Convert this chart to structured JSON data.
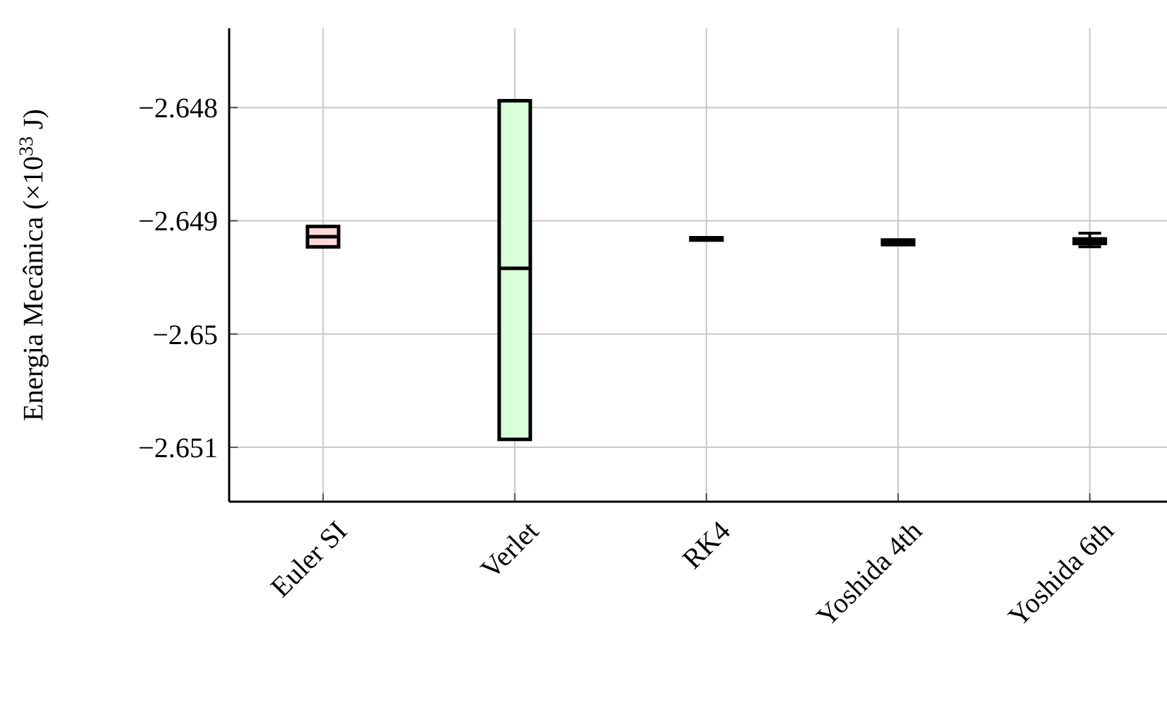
{
  "chart_data": {
    "type": "box",
    "ylabel": "Energia Mecânica (×10$^{33}$ J)",
    "categories": [
      "Euler SI",
      "Verlet",
      "RK4",
      "Yoshida 4th",
      "Yoshida 6th"
    ],
    "boxes": [
      {
        "low": -2.64923,
        "q1": -2.64923,
        "median": -2.64914,
        "q3": -2.64905,
        "high": -2.64905
      },
      {
        "low": -2.65093,
        "q1": -2.65093,
        "median": -2.64942,
        "q3": -2.64794,
        "high": -2.64794
      },
      {
        "low": -2.64917,
        "q1": -2.64917,
        "median": -2.64916,
        "q3": -2.64915,
        "high": -2.64915
      },
      {
        "low": -2.64921,
        "q1": -2.64921,
        "median": -2.64919,
        "q3": -2.64917,
        "high": -2.64917
      },
      {
        "low": -2.64923,
        "q1": -2.6492,
        "median": -2.64918,
        "q3": -2.64916,
        "high": -2.64911
      }
    ],
    "colors": [
      "#ffd8d8",
      "#d8ffd8",
      "#ffffff",
      "#ffffff",
      "#ffffff"
    ],
    "ylim": [
      -2.65148,
      -2.6473
    ],
    "yticks": [
      {
        "value": -2.648,
        "label": "−2.648"
      },
      {
        "value": -2.649,
        "label": "−2.649"
      },
      {
        "value": -2.65,
        "label": "−2.65"
      },
      {
        "value": -2.651,
        "label": "−2.651"
      }
    ],
    "grid": true
  }
}
